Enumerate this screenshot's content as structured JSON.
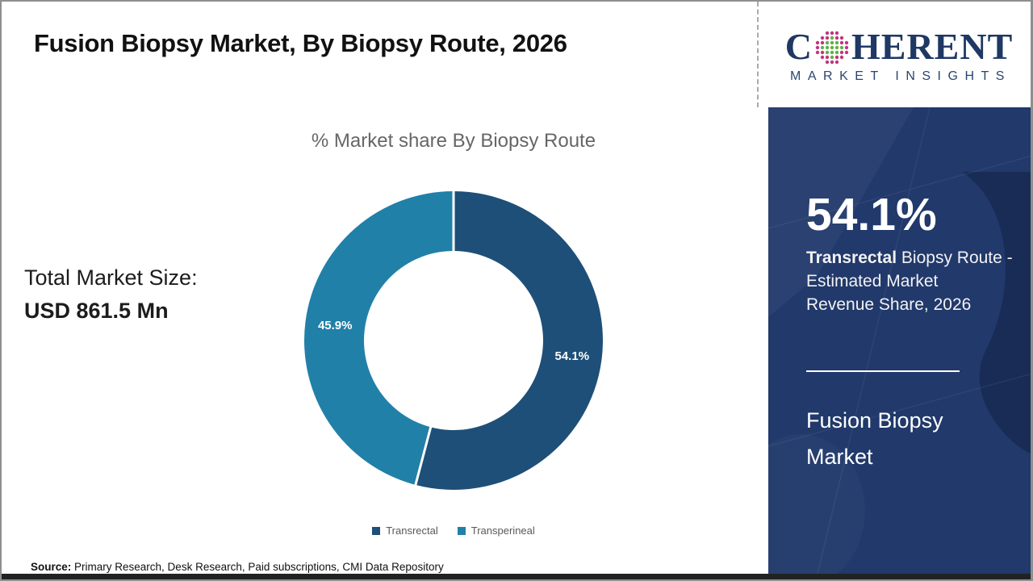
{
  "title": "Fusion Biopsy Market, By Biopsy Route, 2026",
  "logo": {
    "brand_prefix": "C",
    "brand_suffix": "HERENT",
    "tagline": "MARKET INSIGHTS",
    "navy": "#1F3864",
    "dot_green": "#62B146",
    "dot_magenta": "#C13580"
  },
  "chart_data": {
    "type": "donut",
    "title": "% Market share By Biopsy Route",
    "categories": [
      "Transrectal",
      "Transperineal"
    ],
    "values": [
      54.1,
      45.9
    ],
    "labels": [
      "54.1%",
      "45.9%"
    ],
    "colors": [
      "#1E4F78",
      "#2180A8"
    ],
    "legend_position": "bottom",
    "start_angle_deg": 0,
    "direction": "clockwise",
    "inner_radius_ratio": 0.6
  },
  "total_market": {
    "label": "Total Market Size:",
    "value": "USD 861.5 Mn"
  },
  "source": {
    "label": "Source:",
    "text": "Primary Research, Desk Research, Paid subscriptions, CMI Data Repository"
  },
  "side_panel": {
    "bg_color": "#21396B",
    "highlight_value": "54.1%",
    "desc_bold": "Transrectal",
    "desc_line1_rest": " Biopsy Route -",
    "desc_line2": "Estimated Market",
    "desc_line3": "Revenue Share, 2026",
    "panel_title": "Fusion Biopsy Market"
  }
}
